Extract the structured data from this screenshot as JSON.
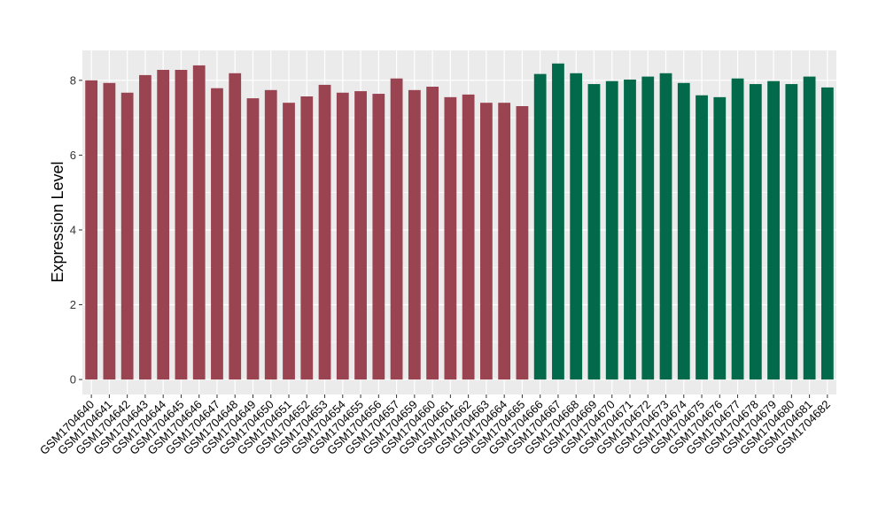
{
  "chart_data": {
    "type": "bar",
    "title": "",
    "xlabel": "",
    "ylabel": "Expression Level",
    "ylim": [
      -0.4,
      8.8
    ],
    "yticks": [
      0,
      2,
      4,
      6,
      8
    ],
    "yticks_labels": [
      "0",
      "2",
      "4",
      "6",
      "8"
    ],
    "grid": true,
    "legend": "none",
    "colors": {
      "group_a": "#9a4452",
      "group_b": "#02694a",
      "panel_bg": "#ebebeb",
      "grid": "#ffffff"
    },
    "categories": [
      "GSM1704640",
      "GSM1704641",
      "GSM1704642",
      "GSM1704643",
      "GSM1704644",
      "GSM1704645",
      "GSM1704646",
      "GSM1704647",
      "GSM1704648",
      "GSM1704649",
      "GSM1704650",
      "GSM1704651",
      "GSM1704652",
      "GSM1704653",
      "GSM1704654",
      "GSM1704655",
      "GSM1704656",
      "GSM1704657",
      "GSM1704659",
      "GSM1704660",
      "GSM1704661",
      "GSM1704662",
      "GSM1704663",
      "GSM1704664",
      "GSM1704665",
      "GSM1704666",
      "GSM1704667",
      "GSM1704668",
      "GSM1704669",
      "GSM1704670",
      "GSM1704671",
      "GSM1704672",
      "GSM1704673",
      "GSM1704674",
      "GSM1704675",
      "GSM1704676",
      "GSM1704677",
      "GSM1704678",
      "GSM1704679",
      "GSM1704680",
      "GSM1704681",
      "GSM1704682"
    ],
    "values": [
      8.0,
      7.93,
      7.67,
      8.14,
      8.28,
      8.28,
      8.4,
      7.79,
      8.19,
      7.52,
      7.74,
      7.4,
      7.57,
      7.88,
      7.67,
      7.71,
      7.64,
      8.05,
      7.74,
      7.83,
      7.55,
      7.62,
      7.4,
      7.4,
      7.31,
      8.17,
      8.45,
      8.19,
      7.9,
      7.98,
      8.02,
      8.1,
      8.19,
      7.93,
      7.6,
      7.55,
      8.05,
      7.9,
      7.98,
      7.9,
      8.1,
      7.81
    ],
    "bar_groups": [
      "a",
      "a",
      "a",
      "a",
      "a",
      "a",
      "a",
      "a",
      "a",
      "a",
      "a",
      "a",
      "a",
      "a",
      "a",
      "a",
      "a",
      "a",
      "a",
      "a",
      "a",
      "a",
      "a",
      "a",
      "a",
      "b",
      "b",
      "b",
      "b",
      "b",
      "b",
      "b",
      "b",
      "b",
      "b",
      "b",
      "b",
      "b",
      "b",
      "b",
      "b",
      "b"
    ]
  }
}
